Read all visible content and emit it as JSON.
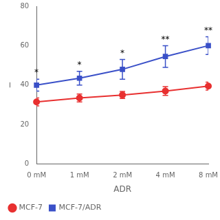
{
  "chart_data": {
    "type": "line",
    "xlabel": "ADR",
    "ylabel": "−",
    "categories": [
      "0 mM",
      "1 mM",
      "2 mM",
      "4 mM",
      "8 mM"
    ],
    "series": [
      {
        "name": "MCF-7",
        "color": "#e83030",
        "marker": "circle",
        "line_style": "solid",
        "values": [
          31.5,
          33.5,
          35.0,
          37.0,
          39.5
        ],
        "errors": [
          2.0,
          2.0,
          1.8,
          2.2,
          2.0
        ]
      },
      {
        "name": "MCF-7/ADR",
        "color": "#3a50c8",
        "marker": "square",
        "line_style": "solid",
        "values": [
          40.0,
          43.5,
          48.0,
          54.5,
          60.0
        ],
        "errors": [
          3.0,
          3.5,
          5.0,
          5.5,
          4.5
        ],
        "annotations": [
          "*",
          "*",
          "*",
          "**",
          "**"
        ]
      }
    ],
    "ylim": [
      0,
      80
    ],
    "yticks": [
      0,
      20,
      40,
      60,
      80
    ],
    "grid": false,
    "legend": "lower left"
  }
}
